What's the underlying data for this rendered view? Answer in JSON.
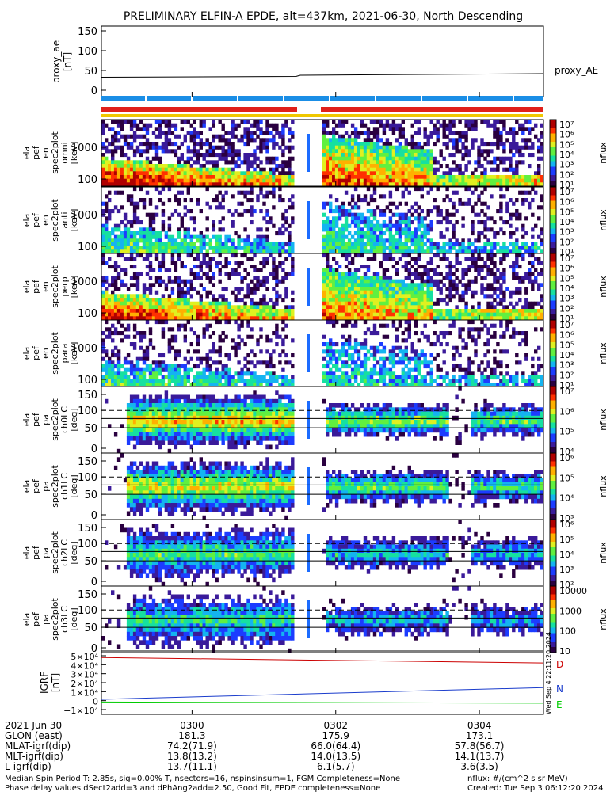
{
  "title": "PRELIMINARY ELFIN-A EPDE, alt=437km, 2021-06-30, North Descending",
  "colors": {
    "red_bar": "#e0201a",
    "blue_bar": "#1a8ee6",
    "yellow_bar": "#f0c800",
    "proxy_line": "#000000",
    "igrf_d": "#cc0000",
    "igrf_n": "#1a3ccc",
    "igrf_e": "#00cc00"
  },
  "panels": {
    "proxy_ae": {
      "ylabel_lines": [
        "proxy_ae",
        "[nT]"
      ],
      "yticks": [
        "150",
        "100",
        "50",
        "0"
      ],
      "ytick_values": [
        150,
        100,
        50,
        0
      ],
      "ylim": [
        0,
        150
      ],
      "legend": "proxy_AE",
      "series": {
        "x_frac": [
          0,
          0.44,
          0.45,
          1
        ],
        "y": [
          33,
          35,
          38,
          42
        ]
      }
    },
    "energy": [
      {
        "ylabel_lines": [
          "ela",
          "pef",
          "en",
          "spec2plot",
          "omni",
          "[keV]"
        ],
        "yticks": [
          "1000",
          "100"
        ],
        "cbar_ticks": [
          "10⁷",
          "10⁶",
          "10⁵",
          "10⁴",
          "10³",
          "10²",
          "10¹"
        ],
        "zlabel": "nflux"
      },
      {
        "ylabel_lines": [
          "ela",
          "pef",
          "en",
          "spec2plot",
          "anti",
          "[keV]"
        ],
        "yticks": [
          "1000",
          "100"
        ],
        "cbar_ticks": [
          "10⁷",
          "10⁶",
          "10⁵",
          "10⁴",
          "10³",
          "10²",
          "10¹"
        ],
        "zlabel": "nflux"
      },
      {
        "ylabel_lines": [
          "ela",
          "pef",
          "en",
          "spec2plot",
          "perp",
          "[keV]"
        ],
        "yticks": [
          "1000",
          "100"
        ],
        "cbar_ticks": [
          "10⁷",
          "10⁶",
          "10⁵",
          "10⁴",
          "10³",
          "10²",
          "10¹"
        ],
        "zlabel": "nflux"
      },
      {
        "ylabel_lines": [
          "ela",
          "pef",
          "en",
          "spec2plot",
          "para",
          "[keV]"
        ],
        "yticks": [
          "1000",
          "100"
        ],
        "cbar_ticks": [
          "10⁷",
          "10⁶",
          "10⁵",
          "10⁴",
          "10³",
          "10²",
          "10¹"
        ],
        "zlabel": "nflux"
      }
    ],
    "pitch": [
      {
        "ylabel_lines": [
          "ela",
          "pef",
          "pa",
          "spec2plot",
          "ch0LC",
          "[deg]"
        ],
        "yticks": [
          "150",
          "100",
          "50",
          "0"
        ],
        "cbar_ticks": [
          "10⁷",
          "10⁶",
          "10⁵",
          "10⁴"
        ],
        "zlabel": "nflux"
      },
      {
        "ylabel_lines": [
          "ela",
          "pef",
          "pa",
          "spec2plot",
          "ch1LC",
          "[deg]"
        ],
        "yticks": [
          "150",
          "100",
          "50",
          "0"
        ],
        "cbar_ticks": [
          "10⁶",
          "10⁵",
          "10⁴",
          "10³"
        ],
        "zlabel": "nflux"
      },
      {
        "ylabel_lines": [
          "ela",
          "pef",
          "pa",
          "spec2plot",
          "ch2LC",
          "[deg]"
        ],
        "yticks": [
          "150",
          "100",
          "50",
          "0"
        ],
        "cbar_ticks": [
          "10⁶",
          "10⁵",
          "10⁴",
          "10³",
          "10²"
        ],
        "zlabel": "nflux"
      },
      {
        "ylabel_lines": [
          "ela",
          "pef",
          "pa",
          "spec2plot",
          "ch3LC",
          "[deg]"
        ],
        "yticks": [
          "150",
          "100",
          "50",
          "0"
        ],
        "cbar_ticks": [
          "10000",
          "1000",
          "100",
          "10"
        ],
        "zlabel": "nflux"
      }
    ],
    "igrf": {
      "ylabel_lines": [
        "IGRF",
        "[nT]"
      ],
      "yticks": [
        "5×10⁴",
        "4×10⁴",
        "3×10⁴",
        "2×10⁴",
        "1×10⁴",
        "0",
        "−1×10⁴"
      ],
      "ytick_values": [
        50000,
        40000,
        30000,
        20000,
        10000,
        0,
        -10000
      ],
      "ylim": [
        -10000,
        50000
      ],
      "series": [
        {
          "name": "D",
          "x_frac": [
            0,
            1
          ],
          "y": [
            48000,
            42000
          ]
        },
        {
          "name": "N",
          "x_frac": [
            0,
            1
          ],
          "y": [
            1500,
            14500
          ]
        },
        {
          "name": "E",
          "x_frac": [
            0,
            1
          ],
          "y": [
            -1500,
            -2800
          ]
        }
      ]
    }
  },
  "side_stamp": "Wed Sep 4 22:11:20 2024",
  "xaxis": {
    "tick_labels": [
      "0300",
      "0302",
      "0304"
    ],
    "tick_frac": [
      0.205,
      0.53,
      0.855
    ],
    "row_labels": [
      "2021 Jun 30",
      "GLON (east)",
      "MLAT-igrf(dip)",
      "MLT-igrf(dip)",
      "L-igrf(dip)"
    ],
    "columns": [
      [
        "",
        "181.3",
        "74.2(71.9)",
        "13.8(13.2)",
        "13.7(11.1)"
      ],
      [
        "",
        "175.9",
        "66.0(64.4)",
        "14.0(13.5)",
        "6.1(5.7)"
      ],
      [
        "",
        "173.1",
        "57.8(56.7)",
        "14.1(13.7)",
        "3.6(3.5)"
      ]
    ]
  },
  "footer": {
    "line1": "Median Spin Period T: 2.85s, sig=0.00% T, nsectors=16, nspinsinsum=1, FGM Completeness=None",
    "line2": "Phase delay values dSect2add=3 and dPhAng2add=2.50, Good Fit, EPDE completeness=None",
    "units": "nflux: #/(cm^2 s sr MeV)",
    "created": "Created: Tue Sep  3 06:12:20 2024"
  }
}
